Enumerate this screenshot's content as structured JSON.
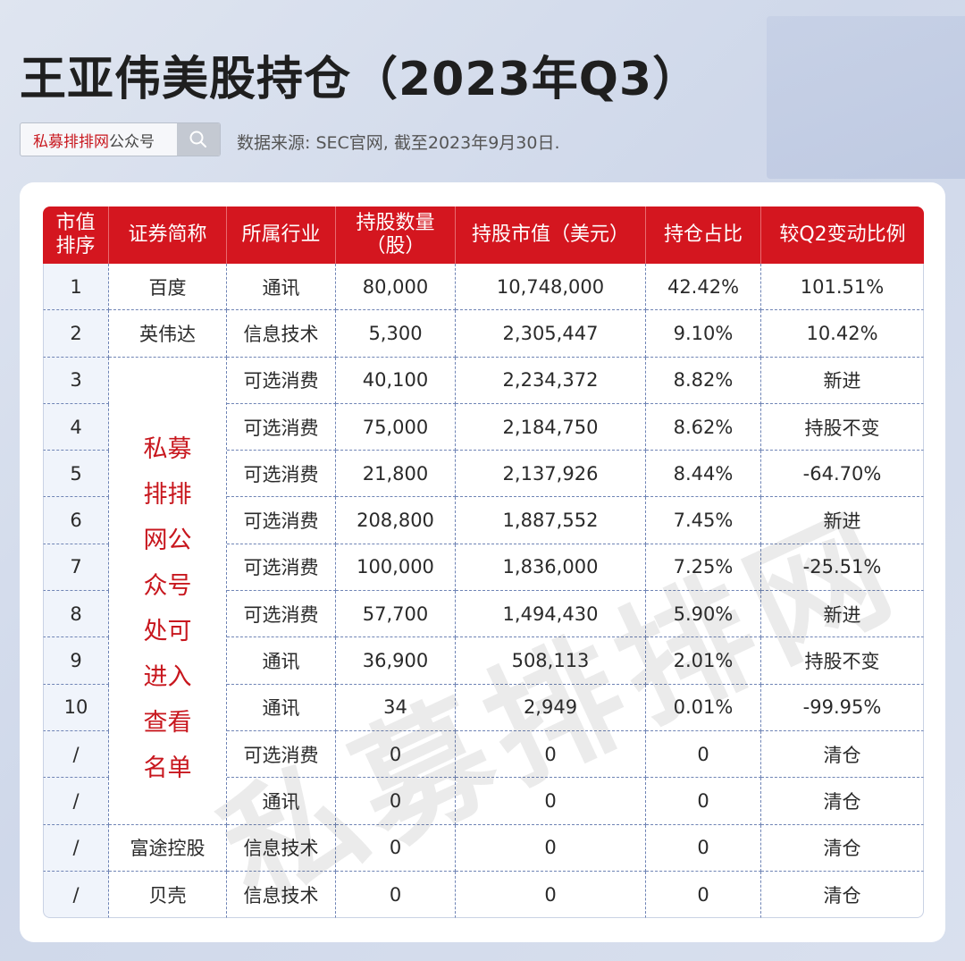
{
  "title": "王亚伟美股持仓（2023年Q3）",
  "search": {
    "brand": "私募排排网",
    "suffix": "公众号"
  },
  "source": "数据来源: SEC官网, 截至2023年9月30日.",
  "table": {
    "headers": [
      "市值\n排序",
      "证券简称",
      "所属行业",
      "持股数量\n（股）",
      "持股市值（美元）",
      "持仓占比",
      "较Q2变动比例"
    ],
    "rows": [
      [
        "1",
        "百度",
        "通讯",
        "80,000",
        "10,748,000",
        "42.42%",
        "101.51%"
      ],
      [
        "2",
        "英伟达",
        "信息技术",
        "5,300",
        "2,305,447",
        "9.10%",
        "10.42%"
      ],
      [
        "3",
        "",
        "可选消费",
        "40,100",
        "2,234,372",
        "8.82%",
        "新进"
      ],
      [
        "4",
        "",
        "可选消费",
        "75,000",
        "2,184,750",
        "8.62%",
        "持股不变"
      ],
      [
        "5",
        "",
        "可选消费",
        "21,800",
        "2,137,926",
        "8.44%",
        "-64.70%"
      ],
      [
        "6",
        "",
        "可选消费",
        "208,800",
        "1,887,552",
        "7.45%",
        "新进"
      ],
      [
        "7",
        "",
        "可选消费",
        "100,000",
        "1,836,000",
        "7.25%",
        "-25.51%"
      ],
      [
        "8",
        "",
        "可选消费",
        "57,700",
        "1,494,430",
        "5.90%",
        "新进"
      ],
      [
        "9",
        "",
        "通讯",
        "36,900",
        "508,113",
        "2.01%",
        "持股不变"
      ],
      [
        "10",
        "",
        "通讯",
        "34",
        "2,949",
        "0.01%",
        "-99.95%"
      ],
      [
        "/",
        "",
        "可选消费",
        "0",
        "0",
        "0",
        "清仓"
      ],
      [
        "/",
        "",
        "通讯",
        "0",
        "0",
        "0",
        "清仓"
      ],
      [
        "/",
        "富途控股",
        "信息技术",
        "0",
        "0",
        "0",
        "清仓"
      ],
      [
        "/",
        "贝壳",
        "信息技术",
        "0",
        "0",
        "0",
        "清仓"
      ]
    ],
    "merged_note": [
      "私募",
      "排排",
      "网公",
      "众号",
      "处可",
      "进入",
      "查看",
      "名单"
    ]
  },
  "watermark": "私募排排网"
}
